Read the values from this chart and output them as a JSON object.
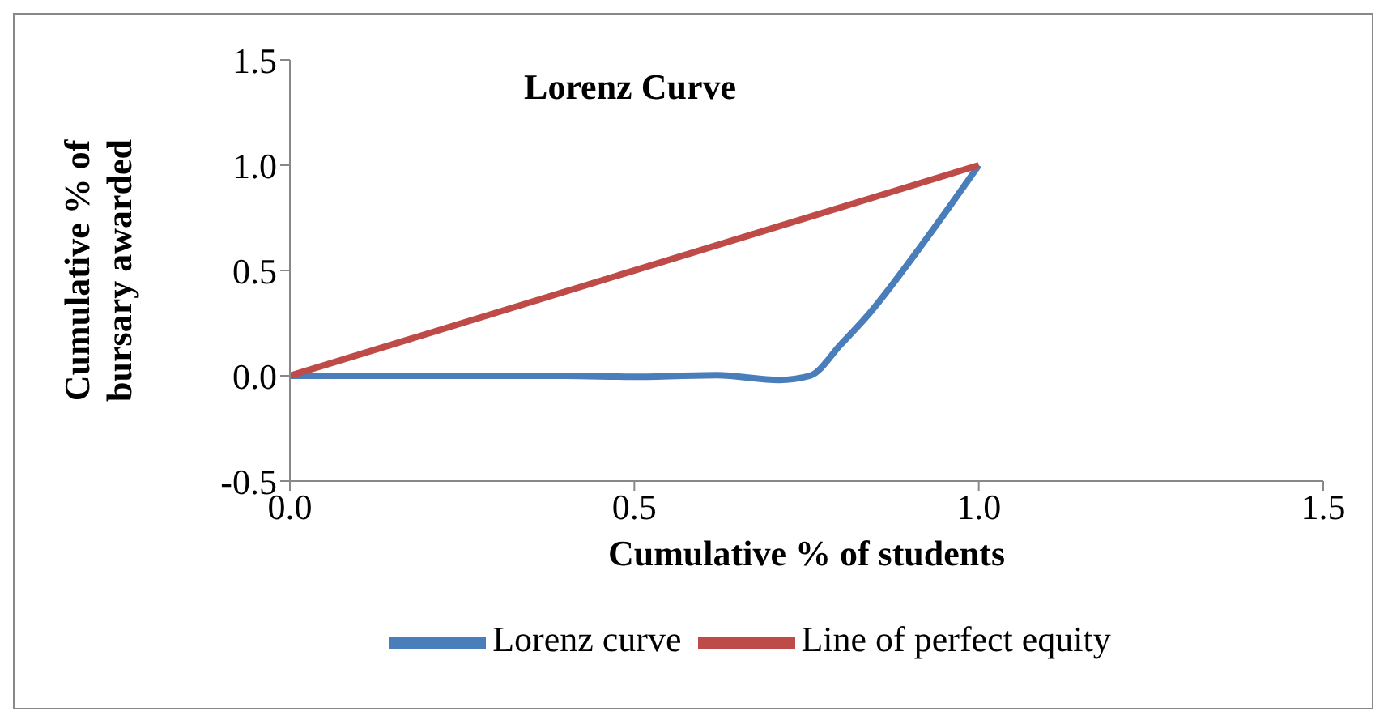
{
  "chart_data": {
    "type": "line",
    "title": "Lorenz Curve",
    "xlabel": "Cumulative % of students",
    "ylabel": "Cumulative % of bursary awarded",
    "xlim": [
      0,
      1.5
    ],
    "xticks": [
      {
        "value": 0,
        "label": "0.0"
      },
      0.5,
      {
        "value": 1,
        "label": "1.0"
      },
      1.5
    ],
    "ylim": [
      -0.5,
      1.5
    ],
    "yticks": [
      -0.5,
      {
        "value": 0,
        "label": "0.0"
      },
      0.5,
      {
        "value": 1,
        "label": "1.0"
      },
      1.5
    ],
    "legend": "bottom",
    "marker": "none",
    "line_style": "solid",
    "series": [
      {
        "name": "Lorenz curve",
        "color": "#4a7ebb",
        "x": [
          0,
          0.2,
          0.4,
          0.5,
          0.62,
          0.71,
          0.755,
          0.8,
          0.837,
          0.917,
          1
        ],
        "values": [
          0,
          0,
          0,
          -0.005,
          0.003,
          -0.02,
          0,
          0.15,
          0.28,
          0.62,
          1
        ]
      },
      {
        "name": "Line of perfect equity",
        "color": "#be4b48",
        "x": [
          0,
          1
        ],
        "values": [
          0,
          1
        ]
      }
    ]
  }
}
